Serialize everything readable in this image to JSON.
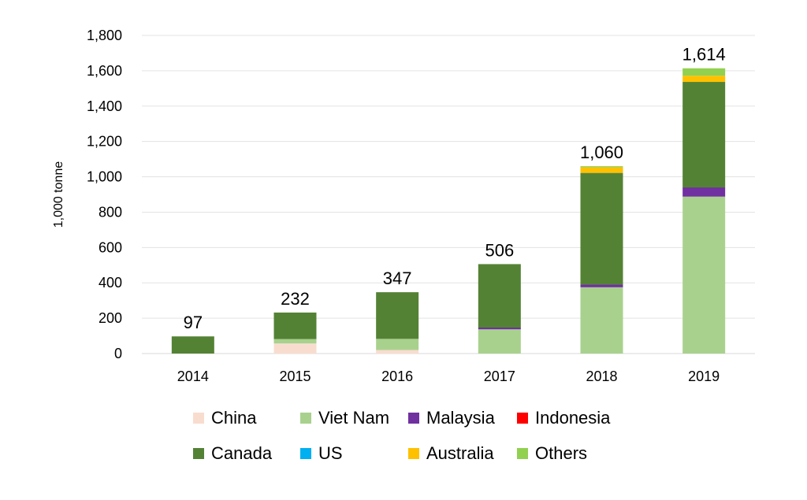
{
  "chart_data": {
    "type": "bar",
    "stacked": true,
    "categories": [
      "2014",
      "2015",
      "2016",
      "2017",
      "2018",
      "2019"
    ],
    "series": [
      {
        "name": "China",
        "color": "#f8ddcf",
        "values": [
          0,
          57,
          20,
          0,
          0,
          0
        ]
      },
      {
        "name": "Viet Nam",
        "color": "#a9d18e",
        "values": [
          0,
          25,
          63,
          137,
          375,
          888
        ]
      },
      {
        "name": "Malaysia",
        "color": "#7030a0",
        "values": [
          0,
          0,
          0,
          10,
          15,
          52
        ]
      },
      {
        "name": "Indonesia",
        "color": "#ff0000",
        "values": [
          0,
          0,
          0,
          0,
          0,
          0
        ]
      },
      {
        "name": "Canada",
        "color": "#548235",
        "values": [
          97,
          150,
          264,
          359,
          632,
          597
        ]
      },
      {
        "name": "US",
        "color": "#00b0f0",
        "values": [
          0,
          0,
          0,
          0,
          0,
          0
        ]
      },
      {
        "name": "Australia",
        "color": "#ffc000",
        "values": [
          0,
          0,
          0,
          0,
          32,
          35
        ]
      },
      {
        "name": "Others",
        "color": "#92d050",
        "values": [
          0,
          0,
          0,
          0,
          6,
          42
        ]
      }
    ],
    "totals": [
      97,
      232,
      347,
      506,
      1060,
      1614
    ],
    "total_labels": [
      "97",
      "232",
      "347",
      "506",
      "1,060",
      "1,614"
    ],
    "ylabel": "1,000 tonne",
    "ylim": [
      0,
      1800
    ],
    "yticks": [
      0,
      200,
      400,
      600,
      800,
      1000,
      1200,
      1400,
      1600,
      1800
    ],
    "ytick_labels": [
      "0",
      "200",
      "400",
      "600",
      "800",
      "1,000",
      "1,200",
      "1,400",
      "1,600",
      "1,800"
    ],
    "grid": true,
    "legend_position": "bottom",
    "legend_rows": [
      [
        "China",
        "Viet Nam",
        "Malaysia",
        "Indonesia"
      ],
      [
        "Canada",
        "US",
        "Australia",
        "Others"
      ]
    ]
  }
}
